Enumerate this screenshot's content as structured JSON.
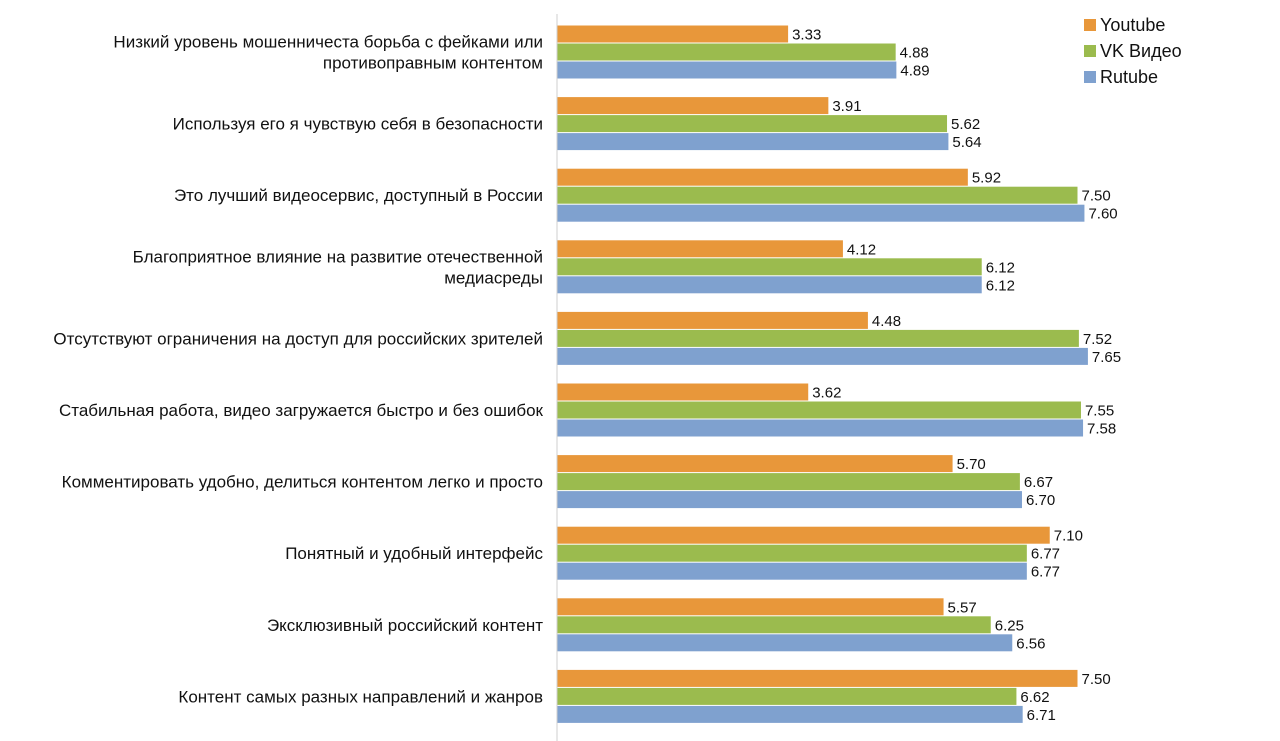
{
  "chart_data": {
    "type": "bar",
    "orientation": "horizontal",
    "categories": [
      [
        "Низкий уровень мошенничеста борьба с фейками или",
        "противоправным контентом"
      ],
      [
        "Используя его я чувствую себя в безопасности"
      ],
      [
        "Это лучший видеосервис, доступный в России"
      ],
      [
        "Благоприятное влияние на развитие отечественной",
        "медиасреды"
      ],
      [
        "Отсутствуют ограничения на доступ для российских зрителей"
      ],
      [
        "Стабильная работа, видео загружается быстро и без ошибок"
      ],
      [
        "Комментировать удобно, делиться контентом легко и просто"
      ],
      [
        "Понятный и удобный интерфейс"
      ],
      [
        "Эксклюзивный российский контент"
      ],
      [
        "Контент самых разных направлений и жанров"
      ]
    ],
    "series": [
      {
        "name": "Youtube",
        "color": "#e8973a",
        "values": [
          3.33,
          3.91,
          5.92,
          4.12,
          4.48,
          3.62,
          5.7,
          7.1,
          5.57,
          7.5
        ],
        "labels": [
          "3.33",
          "3.91",
          "5.92",
          "4.12",
          "4.48",
          "3.62",
          "5.70",
          "7.10",
          "5.57",
          "7.50"
        ]
      },
      {
        "name": "VK Видео",
        "color": "#9bbb4e",
        "values": [
          4.88,
          5.62,
          7.5,
          6.12,
          7.52,
          7.55,
          6.67,
          6.77,
          6.25,
          6.62
        ],
        "labels": [
          "4.88",
          "5.62",
          "7.50",
          "6.12",
          "7.52",
          "7.55",
          "6.67",
          "6.77",
          "6.25",
          "6.62"
        ]
      },
      {
        "name": "Rutube",
        "color": "#7fa1cf",
        "values": [
          4.89,
          5.64,
          7.6,
          6.12,
          7.65,
          7.58,
          6.7,
          6.77,
          6.56,
          6.71
        ],
        "labels": [
          "4.89",
          "5.64",
          "7.60",
          "6.12",
          "7.65",
          "7.58",
          "6.70",
          "6.77",
          "6.56",
          "6.71"
        ]
      }
    ],
    "xlim": [
      0,
      10
    ],
    "grid": false,
    "legend": "top-right"
  }
}
